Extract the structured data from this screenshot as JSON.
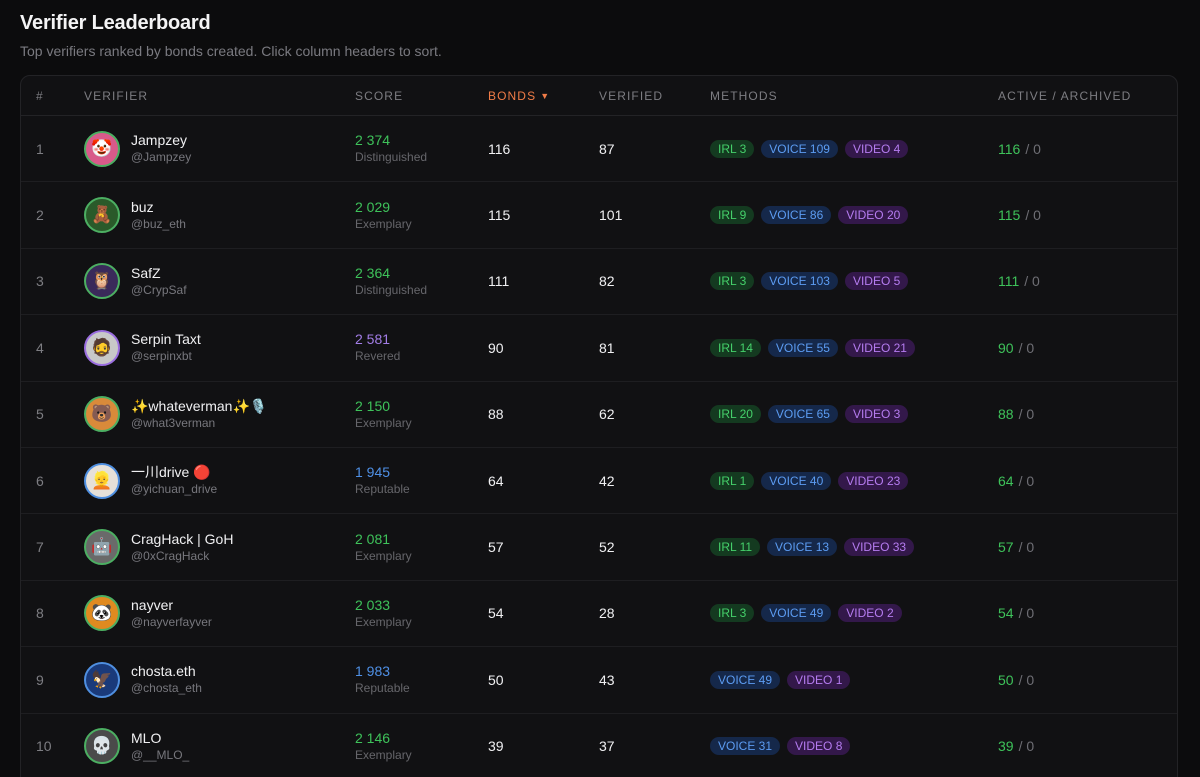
{
  "header": {
    "title": "Verifier Leaderboard",
    "subtitle": "Top verifiers ranked by bonds created. Click column headers to sort."
  },
  "columns": {
    "rank": "#",
    "verifier": "VERIFIER",
    "score": "SCORE",
    "bonds": "BONDS",
    "bonds_sort_icon": "▼",
    "verified": "VERIFIED",
    "methods": "METHODS",
    "active_archived": "ACTIVE / ARCHIVED"
  },
  "colors": {
    "accent_sort": "#f07c47",
    "green": "#3ec25a",
    "purple": "#a27de6",
    "blue": "#4f90e6"
  },
  "rows": [
    {
      "rank": "1",
      "name": "Jampzey",
      "handle": "@Jampzey",
      "score": "2 374",
      "tier": "Distinguished",
      "bonds": "116",
      "verified": "87",
      "irl": "IRL 3",
      "voice": "VOICE 109",
      "video": "VIDEO 4",
      "active": "116",
      "archived": "/ 0"
    },
    {
      "rank": "2",
      "name": "buz",
      "handle": "@buz_eth",
      "score": "2 029",
      "tier": "Exemplary",
      "bonds": "115",
      "verified": "101",
      "irl": "IRL 9",
      "voice": "VOICE 86",
      "video": "VIDEO 20",
      "active": "115",
      "archived": "/ 0"
    },
    {
      "rank": "3",
      "name": "SafZ",
      "handle": "@CrypSaf",
      "score": "2 364",
      "tier": "Distinguished",
      "bonds": "111",
      "verified": "82",
      "irl": "IRL 3",
      "voice": "VOICE 103",
      "video": "VIDEO 5",
      "active": "111",
      "archived": "/ 0"
    },
    {
      "rank": "4",
      "name": "Serpin Taxt",
      "handle": "@serpinxbt",
      "score": "2 581",
      "tier": "Revered",
      "bonds": "90",
      "verified": "81",
      "irl": "IRL 14",
      "voice": "VOICE 55",
      "video": "VIDEO 21",
      "active": "90",
      "archived": "/ 0"
    },
    {
      "rank": "5",
      "name": "✨whateverman✨🎙️",
      "handle": "@what3verman",
      "score": "2 150",
      "tier": "Exemplary",
      "bonds": "88",
      "verified": "62",
      "irl": "IRL 20",
      "voice": "VOICE 65",
      "video": "VIDEO 3",
      "active": "88",
      "archived": "/ 0"
    },
    {
      "rank": "6",
      "name": "一川drive 🔴",
      "handle": "@yichuan_drive",
      "score": "1 945",
      "tier": "Reputable",
      "bonds": "64",
      "verified": "42",
      "irl": "IRL 1",
      "voice": "VOICE 40",
      "video": "VIDEO 23",
      "active": "64",
      "archived": "/ 0"
    },
    {
      "rank": "7",
      "name": "CragHack | GoH",
      "handle": "@0xCragHack",
      "score": "2 081",
      "tier": "Exemplary",
      "bonds": "57",
      "verified": "52",
      "irl": "IRL 11",
      "voice": "VOICE 13",
      "video": "VIDEO 33",
      "active": "57",
      "archived": "/ 0"
    },
    {
      "rank": "8",
      "name": "nayver",
      "handle": "@nayverfayver",
      "score": "2 033",
      "tier": "Exemplary",
      "bonds": "54",
      "verified": "28",
      "irl": "IRL 3",
      "voice": "VOICE 49",
      "video": "VIDEO 2",
      "active": "54",
      "archived": "/ 0"
    },
    {
      "rank": "9",
      "name": "chosta.eth",
      "handle": "@chosta_eth",
      "score": "1 983",
      "tier": "Reputable",
      "bonds": "50",
      "verified": "43",
      "irl": "",
      "voice": "VOICE 49",
      "video": "VIDEO 1",
      "active": "50",
      "archived": "/ 0"
    },
    {
      "rank": "10",
      "name": "MLO",
      "handle": "@__MLO_",
      "score": "2 146",
      "tier": "Exemplary",
      "bonds": "39",
      "verified": "37",
      "irl": "",
      "voice": "VOICE 31",
      "video": "VIDEO 8",
      "active": "39",
      "archived": "/ 0"
    }
  ]
}
